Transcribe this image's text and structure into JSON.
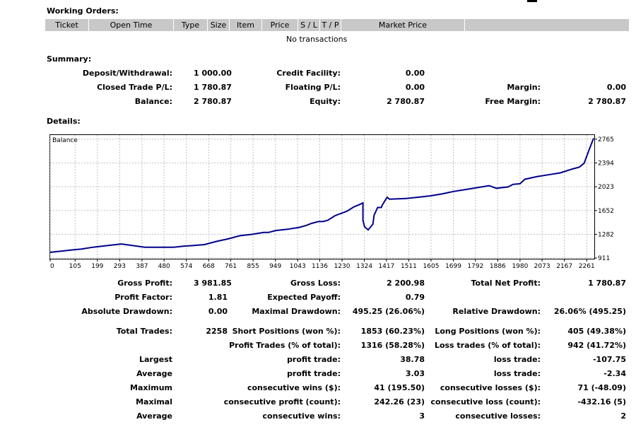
{
  "working_orders": {
    "title": "Working Orders:",
    "columns": [
      "Ticket",
      "Open Time",
      "Type",
      "Size",
      "Item",
      "Price",
      "S / L",
      "T / P",
      "Market Price",
      ""
    ],
    "empty_text": "No transactions"
  },
  "summary": {
    "title": "Summary:",
    "deposit_label": "Deposit/Withdrawal:",
    "deposit_value": "1 000.00",
    "credit_label": "Credit Facility:",
    "credit_value": "0.00",
    "closed_label": "Closed Trade P/L:",
    "closed_value": "1 780.87",
    "floating_label": "Floating P/L:",
    "floating_value": "0.00",
    "margin_label": "Margin:",
    "margin_value": "0.00",
    "balance_label": "Balance:",
    "balance_value": "2 780.87",
    "equity_label": "Equity:",
    "equity_value": "2 780.87",
    "free_margin_label": "Free Margin:",
    "free_margin_value": "2 780.87"
  },
  "details": {
    "title": "Details:",
    "gross_profit_label": "Gross Profit:",
    "gross_profit_value": "3 981.85",
    "gross_loss_label": "Gross Loss:",
    "gross_loss_value": "2 200.98",
    "net_profit_label": "Total Net Profit:",
    "net_profit_value": "1 780.87",
    "profit_factor_label": "Profit Factor:",
    "profit_factor_value": "1.81",
    "expected_payoff_label": "Expected Payoff:",
    "expected_payoff_value": "0.79",
    "abs_dd_label": "Absolute Drawdown:",
    "abs_dd_value": "0.00",
    "max_dd_label": "Maximal Drawdown:",
    "max_dd_value": "495.25 (26.06%)",
    "rel_dd_label": "Relative Drawdown:",
    "rel_dd_value": "26.06% (495.25)",
    "total_trades_label": "Total Trades:",
    "total_trades_value": "2258",
    "short_label": "Short Positions (won %):",
    "short_value": "1853 (60.23%)",
    "long_label": "Long Positions (won %):",
    "long_value": "405 (49.38%)",
    "profit_trades_label": "Profit Trades (% of total):",
    "profit_trades_value": "1316 (58.28%)",
    "loss_trades_label": "Loss trades (% of total):",
    "loss_trades_value": "942 (41.72%)",
    "largest_label": "Largest",
    "largest_profit_label": "profit trade:",
    "largest_profit_value": "38.78",
    "largest_loss_label": "loss trade:",
    "largest_loss_value": "-107.75",
    "average_label": "Average",
    "average_profit_label": "profit trade:",
    "average_profit_value": "3.03",
    "average_loss_label": "loss trade:",
    "average_loss_value": "-2.34",
    "maximum_label": "Maximum",
    "max_wins_label": "consecutive wins ($):",
    "max_wins_value": "41 (195.50)",
    "max_losses_label": "consecutive losses ($):",
    "max_losses_value": "71 (-48.09)",
    "maximal_label": "Maximal",
    "maximal_profit_label": "consecutive profit (count):",
    "maximal_profit_value": "242.26 (23)",
    "maximal_loss_label": "consecutive loss (count):",
    "maximal_loss_value": "-432.16 (5)",
    "avg_cons_label": "Average",
    "avg_wins_label": "consecutive wins:",
    "avg_wins_value": "3",
    "avg_losses_label": "consecutive losses:",
    "avg_losses_value": "2"
  },
  "chart_data": {
    "type": "line",
    "legend": "Balance",
    "line_color": "#00008b",
    "grid": true,
    "x_ticks": [
      0,
      105,
      199,
      293,
      387,
      480,
      574,
      668,
      761,
      855,
      949,
      1043,
      1136,
      1230,
      1324,
      1417,
      1511,
      1605,
      1699,
      1792,
      1886,
      1980,
      2073,
      2167,
      2261
    ],
    "y_ticks": [
      911,
      1282,
      1652,
      2023,
      2394,
      2765
    ],
    "xlim": [
      0,
      2290
    ],
    "ylim": [
      911,
      2830
    ],
    "x": [
      0,
      50,
      100,
      130,
      180,
      250,
      300,
      400,
      450,
      520,
      560,
      600,
      650,
      700,
      750,
      800,
      850,
      900,
      920,
      950,
      1000,
      1050,
      1080,
      1100,
      1130,
      1150,
      1170,
      1200,
      1220,
      1250,
      1280,
      1300,
      1318,
      1318,
      1325,
      1340,
      1360,
      1365,
      1380,
      1395,
      1400,
      1420,
      1430,
      1500,
      1550,
      1600,
      1650,
      1700,
      1750,
      1800,
      1850,
      1880,
      1930,
      1950,
      1980,
      2000,
      2050,
      2100,
      2150,
      2200,
      2230,
      2250,
      2270,
      2290
    ],
    "y": [
      1000,
      1020,
      1040,
      1050,
      1080,
      1110,
      1130,
      1080,
      1080,
      1080,
      1095,
      1105,
      1120,
      1170,
      1210,
      1260,
      1280,
      1310,
      1310,
      1340,
      1360,
      1390,
      1420,
      1450,
      1480,
      1480,
      1500,
      1570,
      1600,
      1640,
      1710,
      1740,
      1770,
      1500,
      1400,
      1350,
      1440,
      1580,
      1700,
      1700,
      1740,
      1860,
      1830,
      1840,
      1860,
      1880,
      1910,
      1950,
      1980,
      2010,
      2040,
      2000,
      2020,
      2060,
      2070,
      2140,
      2180,
      2210,
      2240,
      2300,
      2330,
      2390,
      2590,
      2780
    ]
  }
}
